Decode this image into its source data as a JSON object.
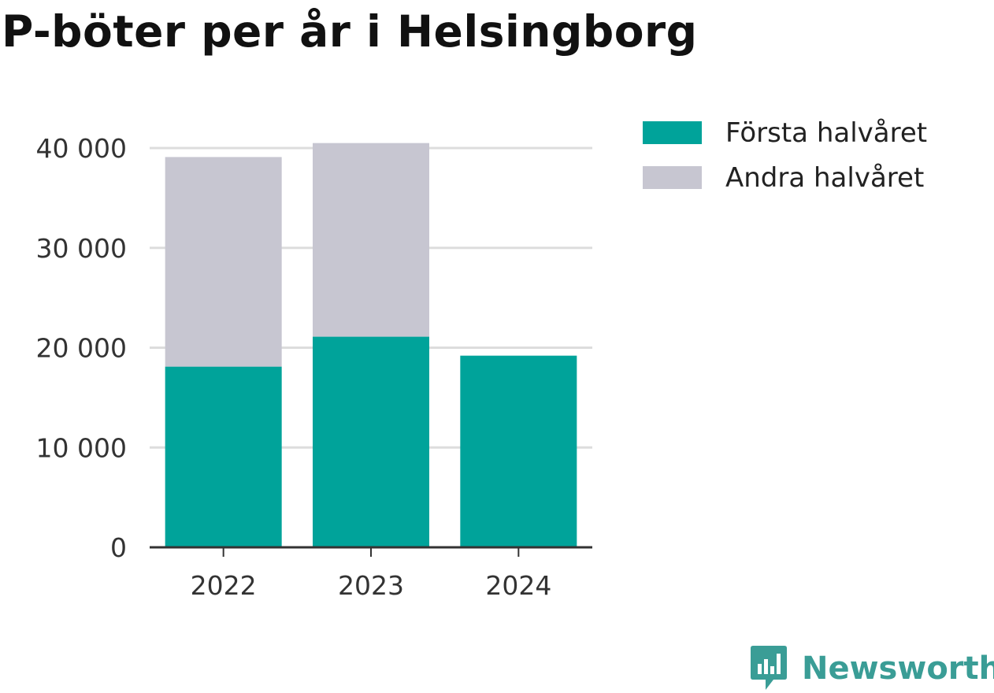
{
  "title": "P-böter per år i Helsingborg",
  "chart_data": {
    "type": "bar",
    "stacked": true,
    "categories": [
      "2022",
      "2023",
      "2024"
    ],
    "series": [
      {
        "name": "Första halvåret",
        "values": [
          18100,
          21100,
          19200
        ],
        "color": "#00a39a"
      },
      {
        "name": "Andra halvåret",
        "values": [
          21000,
          19400,
          0
        ],
        "color": "#c7c6d1"
      }
    ],
    "ylim": [
      0,
      40000
    ],
    "yticks": [
      0,
      10000,
      20000,
      30000,
      40000
    ],
    "ytick_labels": [
      "0",
      "10 000",
      "20 000",
      "30 000",
      "40 000"
    ],
    "grid": true,
    "legend_position": "top-right",
    "xlabel": "",
    "ylabel": ""
  },
  "legend": {
    "items": [
      {
        "label": "Första halvåret",
        "color": "#00a39a"
      },
      {
        "label": "Andra halvåret",
        "color": "#c7c6d1"
      }
    ]
  },
  "brand": {
    "name": "Newsworthy",
    "color": "#3a9d96",
    "icon": "newsworthy-logo-icon"
  }
}
